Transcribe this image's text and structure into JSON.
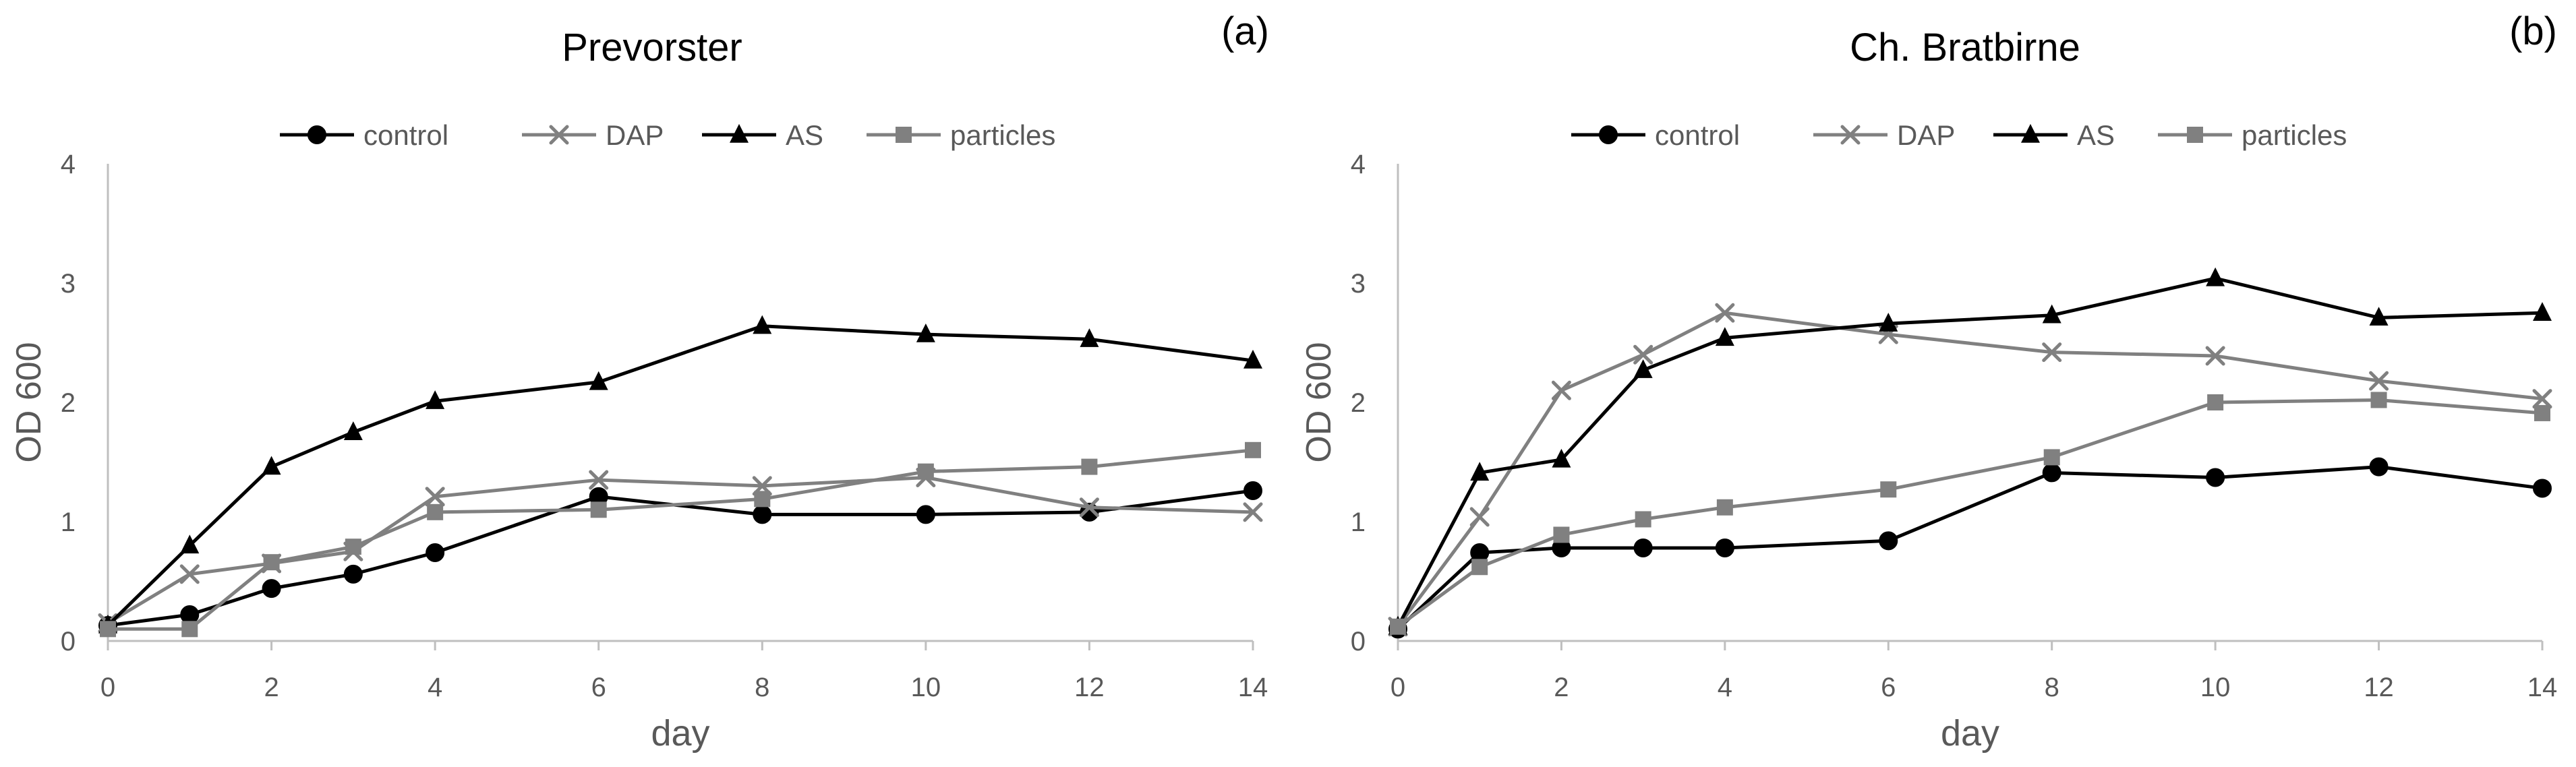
{
  "chart_data": [
    {
      "type": "line",
      "title": "Prevorster",
      "panel_label": "(a)",
      "xlabel": "day",
      "ylabel": "OD 600",
      "xlim": [
        0,
        14
      ],
      "ylim": [
        0,
        4
      ],
      "xticks": [
        "0",
        "2",
        "4",
        "6",
        "8",
        "10",
        "12",
        "14"
      ],
      "yticks": [
        "0",
        "1",
        "2",
        "3",
        "4"
      ],
      "grid": false,
      "legend_position": "top",
      "x": [
        0,
        1,
        2,
        3,
        4,
        6,
        8,
        10,
        12,
        14
      ],
      "series": [
        {
          "name": "control",
          "marker": "circle",
          "color": "#000000",
          "values": [
            0.13,
            0.22,
            0.44,
            0.56,
            0.74,
            1.21,
            1.06,
            1.06,
            1.08,
            1.26
          ]
        },
        {
          "name": "DAP",
          "marker": "x",
          "color": "#808080",
          "values": [
            0.15,
            0.56,
            0.65,
            0.75,
            1.21,
            1.35,
            1.3,
            1.37,
            1.12,
            1.08
          ]
        },
        {
          "name": "AS",
          "marker": "triangle",
          "color": "#000000",
          "values": [
            0.13,
            0.8,
            1.46,
            1.75,
            2.01,
            2.17,
            2.64,
            2.57,
            2.53,
            2.35
          ]
        },
        {
          "name": "particles",
          "marker": "square",
          "color": "#808080",
          "values": [
            0.1,
            0.1,
            0.66,
            0.79,
            1.08,
            1.1,
            1.19,
            1.42,
            1.46,
            1.6
          ]
        }
      ]
    },
    {
      "type": "line",
      "title": "Ch. Bratbirne",
      "panel_label": "(b)",
      "xlabel": "day",
      "ylabel": "OD 600",
      "xlim": [
        0,
        14
      ],
      "ylim": [
        0,
        4
      ],
      "xticks": [
        "0",
        "2",
        "4",
        "6",
        "8",
        "10",
        "12",
        "14"
      ],
      "yticks": [
        "0",
        "1",
        "2",
        "3",
        "4"
      ],
      "grid": false,
      "legend_position": "top",
      "x": [
        0,
        1,
        2,
        3,
        4,
        6,
        8,
        10,
        12,
        14
      ],
      "series": [
        {
          "name": "control",
          "marker": "circle",
          "color": "#000000",
          "values": [
            0.1,
            0.74,
            0.78,
            0.78,
            0.78,
            0.84,
            1.41,
            1.37,
            1.46,
            1.28
          ]
        },
        {
          "name": "DAP",
          "marker": "x",
          "color": "#808080",
          "values": [
            0.12,
            1.04,
            2.1,
            2.4,
            2.75,
            2.57,
            2.42,
            2.39,
            2.18,
            2.03
          ]
        },
        {
          "name": "AS",
          "marker": "triangle",
          "color": "#000000",
          "values": [
            0.12,
            1.41,
            1.52,
            2.27,
            2.54,
            2.66,
            2.73,
            3.04,
            2.71,
            2.75
          ]
        },
        {
          "name": "particles",
          "marker": "square",
          "color": "#808080",
          "values": [
            0.12,
            0.62,
            0.89,
            1.02,
            1.12,
            1.27,
            1.54,
            2.0,
            2.02,
            1.91
          ]
        }
      ]
    }
  ]
}
